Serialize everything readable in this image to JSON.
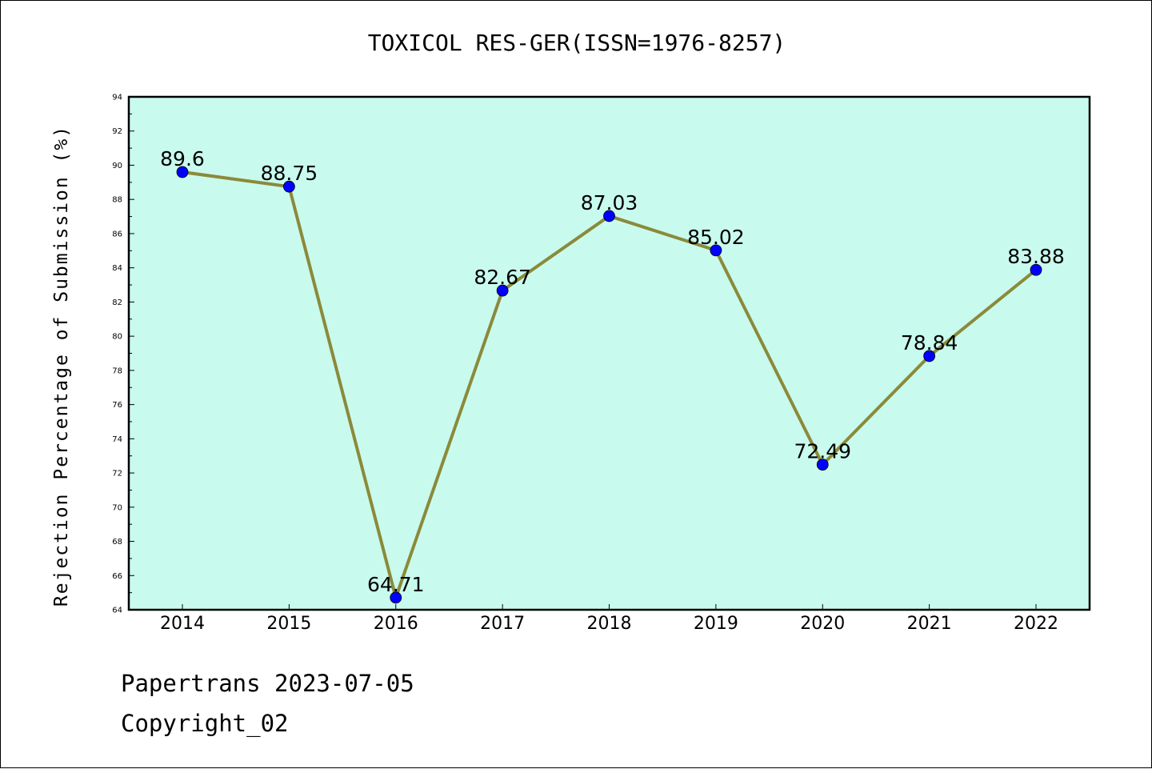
{
  "title": "TOXICOL RES-GER(ISSN=1976-8257)",
  "footer": {
    "line1": "Papertrans 2023-07-05",
    "line2": "Copyright_02"
  },
  "colors": {
    "plot_background": "#c8fbee",
    "line": "#8b8a3a",
    "marker": "#0000ff"
  },
  "chart_data": {
    "type": "line",
    "title": "TOXICOL RES-GER(ISSN=1976-8257)",
    "xlabel": "",
    "ylabel": "Rejection Percentage of Submission (%)",
    "categories": [
      "2014",
      "2015",
      "2016",
      "2017",
      "2018",
      "2019",
      "2020",
      "2021",
      "2022"
    ],
    "series": [
      {
        "values": [
          89.6,
          88.75,
          64.71,
          82.67,
          87.03,
          85.02,
          72.49,
          78.84,
          83.88
        ],
        "labels": [
          "89.6",
          "88.75",
          "64.71",
          "82.67",
          "87.03",
          "85.02",
          "72.49",
          "78.84",
          "83.88"
        ]
      }
    ],
    "ylim": [
      64,
      94
    ],
    "yticks": [
      64,
      66,
      68,
      70,
      72,
      74,
      76,
      78,
      80,
      82,
      84,
      86,
      88,
      90,
      92,
      94
    ],
    "grid": false,
    "legend": "none"
  }
}
